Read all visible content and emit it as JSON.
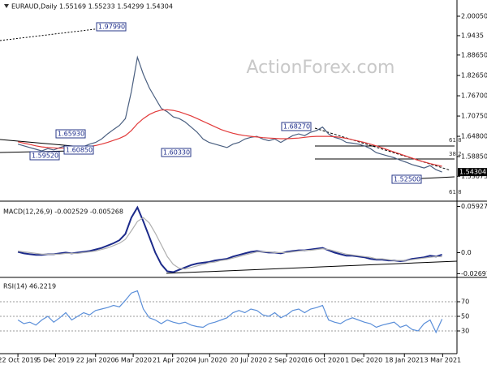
{
  "chart_data": [
    {
      "type": "line",
      "title": "EURAUD,Daily  1.55169 1.55233 1.54299 1.54304",
      "watermark": "ActionForex.com",
      "xlim": [
        -3,
        73.5
      ],
      "ylim": [
        1.4648,
        2.0362
      ],
      "yticks": [
        {
          "value": 2.0005,
          "label": "2.00050"
        },
        1.9435,
        {
          "value": 1.8865,
          "label": "1.88650"
        },
        {
          "value": 1.8265,
          "label": "1.82650"
        },
        {
          "value": 1.767,
          "label": "1.76700"
        },
        {
          "value": 1.7075,
          "label": "1.70750"
        },
        {
          "value": 1.648,
          "label": "1.64800"
        },
        {
          "value": 1.5885,
          "label": "1.58850"
        },
        1.53075
      ],
      "last_price": {
        "value": 1.54304,
        "label": "1.54304"
      },
      "annotations": [
        "1.97990",
        "1.65930",
        "1.59520",
        "1.60850",
        "1.60330",
        "1.68270",
        "1.52500",
        "61.8",
        "38.2",
        "61.8"
      ],
      "series": [
        {
          "color": "#4a5f80",
          "values": [
            1.625,
            1.62,
            1.615,
            1.61,
            1.605,
            1.612,
            1.608,
            1.615,
            1.62,
            1.61,
            1.612,
            1.618,
            1.625,
            1.63,
            1.64,
            1.655,
            1.668,
            1.68,
            1.7,
            1.78,
            1.88,
            1.83,
            1.79,
            1.76,
            1.73,
            1.72,
            1.705,
            1.7,
            1.69,
            1.675,
            1.66,
            1.64,
            1.63,
            1.625,
            1.62,
            1.615,
            1.625,
            1.63,
            1.64,
            1.645,
            1.648,
            1.64,
            1.635,
            1.64,
            1.63,
            1.64,
            1.65,
            1.655,
            1.65,
            1.66,
            1.665,
            1.675,
            1.655,
            1.645,
            1.64,
            1.63,
            1.628,
            1.625,
            1.62,
            1.612,
            1.6,
            1.595,
            1.59,
            1.585,
            1.578,
            1.572,
            1.565,
            1.56,
            1.555,
            1.562,
            1.55,
            1.54304
          ]
        },
        {
          "color": "#e23b3b",
          "values": [
            1.632,
            1.628,
            1.624,
            1.62,
            1.617,
            1.615,
            1.614,
            1.613,
            1.614,
            1.614,
            1.615,
            1.616,
            1.618,
            1.621,
            1.625,
            1.63,
            1.636,
            1.642,
            1.65,
            1.665,
            1.685,
            1.7,
            1.712,
            1.72,
            1.725,
            1.726,
            1.724,
            1.72,
            1.714,
            1.708,
            1.7,
            1.692,
            1.684,
            1.676,
            1.668,
            1.662,
            1.657,
            1.653,
            1.65,
            1.648,
            1.646,
            1.644,
            1.643,
            1.642,
            1.641,
            1.641,
            1.642,
            1.643,
            1.645,
            1.647,
            1.648,
            1.648,
            1.648,
            1.647,
            1.645,
            1.642,
            1.638,
            1.634,
            1.63,
            1.625,
            1.62,
            1.614,
            1.608,
            1.602,
            1.596,
            1.59,
            1.584,
            1.578,
            1.573,
            1.568,
            1.564,
            1.56
          ]
        }
      ]
    },
    {
      "type": "line",
      "title": "MACD(12,26,9) -0.002529 -0.005268",
      "xlim": [
        -3,
        73.5
      ],
      "ylim": [
        -0.0297,
        0.0608
      ],
      "yticks": [
        0.059272,
        {
          "value": 0,
          "label": "0.0"
        },
        -0.026978
      ],
      "series": [
        {
          "color": "#1c2a8a",
          "values": [
            0.001,
            -0.001,
            -0.002,
            -0.003,
            -0.003,
            -0.002,
            -0.002,
            -0.001,
            0.0,
            -0.001,
            0.0,
            0.001,
            0.002,
            0.004,
            0.006,
            0.009,
            0.012,
            0.016,
            0.024,
            0.045,
            0.058,
            0.04,
            0.02,
            0.0,
            -0.015,
            -0.024,
            -0.025,
            -0.022,
            -0.019,
            -0.016,
            -0.014,
            -0.013,
            -0.012,
            -0.01,
            -0.009,
            -0.008,
            -0.005,
            -0.003,
            -0.001,
            0.001,
            0.002,
            0.001,
            0.0,
            0.0,
            -0.001,
            0.001,
            0.002,
            0.003,
            0.003,
            0.004,
            0.005,
            0.006,
            0.003,
            0.0,
            -0.002,
            -0.004,
            -0.004,
            -0.005,
            -0.006,
            -0.008,
            -0.009,
            -0.009,
            -0.01,
            -0.01,
            -0.011,
            -0.01,
            -0.008,
            -0.007,
            -0.006,
            -0.004,
            -0.005,
            -0.002529
          ]
        },
        {
          "color": "#b0b0b0",
          "values": [
            0.002,
            0.001,
            0.0,
            -0.001,
            -0.002,
            -0.002,
            -0.002,
            -0.002,
            -0.001,
            -0.001,
            -0.001,
            0.0,
            0.001,
            0.002,
            0.004,
            0.006,
            0.009,
            0.012,
            0.017,
            0.028,
            0.04,
            0.045,
            0.038,
            0.025,
            0.01,
            -0.005,
            -0.015,
            -0.02,
            -0.021,
            -0.019,
            -0.017,
            -0.015,
            -0.013,
            -0.012,
            -0.01,
            -0.009,
            -0.007,
            -0.005,
            -0.003,
            -0.001,
            0.001,
            0.001,
            0.001,
            0.0,
            0.0,
            0.0,
            0.001,
            0.002,
            0.003,
            0.003,
            0.004,
            0.005,
            0.004,
            0.002,
            0.0,
            -0.002,
            -0.003,
            -0.004,
            -0.005,
            -0.006,
            -0.008,
            -0.008,
            -0.009,
            -0.01,
            -0.01,
            -0.01,
            -0.009,
            -0.008,
            -0.007,
            -0.006,
            -0.005,
            -0.005268
          ]
        }
      ]
    },
    {
      "type": "line",
      "title": "RSI(14) 46.2219",
      "xlim": [
        -3,
        73.5
      ],
      "ylim": [
        0,
        100
      ],
      "yticks": [
        70,
        50,
        30
      ],
      "grid": true,
      "xticks": [
        {
          "value": 0,
          "label": "22 Oct 2019"
        },
        {
          "value": 6.3,
          "label": "5 Dec 2019"
        },
        {
          "value": 13,
          "label": "22 Jan 2020"
        },
        {
          "value": 19.3,
          "label": "6 Mar 2020"
        },
        {
          "value": 25.9,
          "label": "21 Apr 2020"
        },
        {
          "value": 32.1,
          "label": "4 Jun 2020"
        },
        {
          "value": 38.6,
          "label": "20 Jul 2020"
        },
        {
          "value": 45,
          "label": "2 Sep 2020"
        },
        {
          "value": 51.3,
          "label": "16 Oct 2020"
        },
        {
          "value": 57.9,
          "label": "1 Dec 2020"
        },
        {
          "value": 64.7,
          "label": "18 Jan 2021"
        },
        {
          "value": 71.1,
          "label": "3 Mar 2021"
        }
      ],
      "series": [
        {
          "color": "#5b8fd9",
          "values": [
            45,
            40,
            42,
            38,
            45,
            50,
            42,
            48,
            55,
            45,
            50,
            55,
            52,
            58,
            60,
            62,
            65,
            63,
            72,
            82,
            85,
            60,
            48,
            45,
            40,
            45,
            42,
            40,
            42,
            38,
            36,
            35,
            40,
            42,
            45,
            48,
            55,
            58,
            55,
            60,
            58,
            52,
            50,
            55,
            48,
            52,
            58,
            60,
            55,
            60,
            62,
            65,
            45,
            42,
            40,
            45,
            48,
            45,
            42,
            40,
            35,
            38,
            40,
            42,
            35,
            38,
            32,
            30,
            40,
            45,
            28,
            46.2219
          ]
        }
      ]
    }
  ]
}
